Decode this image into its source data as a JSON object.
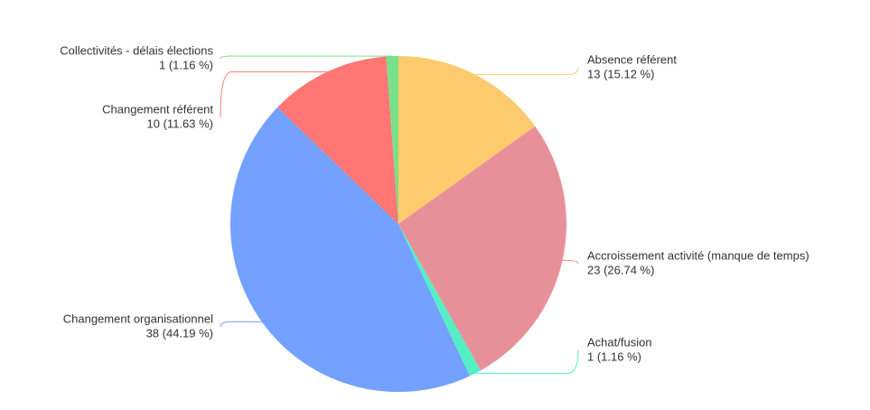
{
  "chart_data": {
    "type": "pie",
    "categories": [
      "Absence référent",
      "Accroissement activité (manque de temps)",
      "Achat/fusion",
      "Changement organisationnel",
      "Changement référent",
      "Collectivités - délais élections"
    ],
    "values": [
      13,
      23,
      1,
      38,
      10,
      1
    ],
    "value_labels": [
      "13 (15.12 %)",
      "23 (26.74 %)",
      "1 (1.16 %)",
      "38 (44.19 %)",
      "10 (11.63 %)",
      "1 (1.16 %)"
    ],
    "colors": [
      "#fdcb6e",
      "#e8909a",
      "#55efc4",
      "#74a0ff",
      "#ff7675",
      "#7be08a"
    ]
  }
}
